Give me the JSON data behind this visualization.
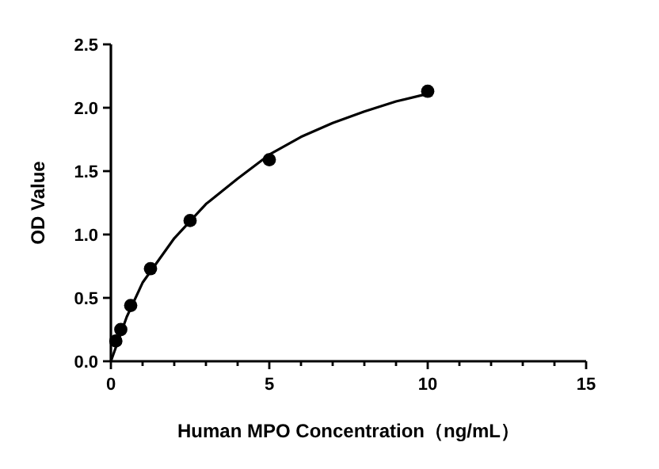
{
  "chart_data": {
    "type": "scatter",
    "xlabel": "Human MPO Concentration（ng/mL）",
    "ylabel": "OD Value",
    "xlim": [
      0,
      15
    ],
    "xticks": [
      0,
      5,
      10,
      15
    ],
    "ylim": [
      0,
      2.5
    ],
    "yticks": [
      {
        "value": 0,
        "label": "0.0"
      },
      0.5,
      {
        "value": 1,
        "label": "1.0"
      },
      1.5,
      {
        "value": 2,
        "label": "2.0"
      },
      2.5
    ],
    "grid": false,
    "series": [
      {
        "color": "#000000",
        "marker": "circle",
        "x": [
          0.156,
          0.3125,
          0.625,
          1.25,
          2.5,
          5,
          10
        ],
        "values": [
          0.16,
          0.25,
          0.44,
          0.73,
          1.11,
          1.59,
          2.13
        ]
      },
      {
        "type": "line",
        "color": "#000000",
        "line_style": "solid",
        "x": [
          0,
          0.5,
          1,
          2,
          3,
          4,
          5,
          6,
          7,
          8,
          9,
          10
        ],
        "values": [
          0,
          0.35,
          0.62,
          0.97,
          1.24,
          1.44,
          1.63,
          1.77,
          1.88,
          1.97,
          2.05,
          2.11
        ]
      }
    ]
  }
}
